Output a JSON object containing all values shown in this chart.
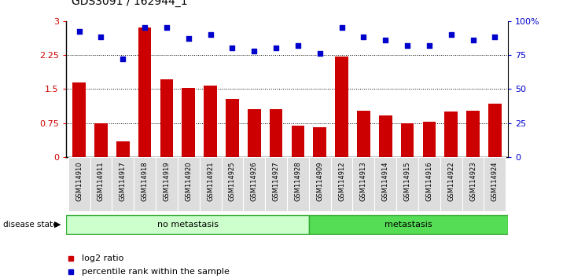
{
  "title": "GDS3091 / 162944_1",
  "samples": [
    "GSM114910",
    "GSM114911",
    "GSM114917",
    "GSM114918",
    "GSM114919",
    "GSM114920",
    "GSM114921",
    "GSM114925",
    "GSM114926",
    "GSM114927",
    "GSM114928",
    "GSM114909",
    "GSM114912",
    "GSM114913",
    "GSM114914",
    "GSM114915",
    "GSM114916",
    "GSM114922",
    "GSM114923",
    "GSM114924"
  ],
  "log2_ratio": [
    1.65,
    0.75,
    0.35,
    2.85,
    1.72,
    1.52,
    1.57,
    1.28,
    1.05,
    1.05,
    0.7,
    0.65,
    2.22,
    1.02,
    0.92,
    0.75,
    0.78,
    1.0,
    1.02,
    1.18
  ],
  "percentile": [
    92,
    88,
    72,
    95,
    95,
    87,
    90,
    80,
    78,
    80,
    82,
    76,
    95,
    88,
    86,
    82,
    82,
    90,
    86,
    88
  ],
  "no_metastasis_count": 11,
  "metastasis_count": 9,
  "ylim_left": [
    0,
    3
  ],
  "ylim_right": [
    0,
    100
  ],
  "yticks_left": [
    0,
    0.75,
    1.5,
    2.25,
    3
  ],
  "yticks_right": [
    0,
    25,
    50,
    75,
    100
  ],
  "ytick_labels_left": [
    "0",
    "0.75",
    "1.5",
    "2.25",
    "3"
  ],
  "ytick_labels_right": [
    "0",
    "25",
    "50",
    "75",
    "100%"
  ],
  "hlines": [
    0.75,
    1.5,
    2.25
  ],
  "bar_color": "#cc0000",
  "dot_color": "#0000cc",
  "no_metastasis_color": "#ccffcc",
  "metastasis_color": "#55dd55",
  "tick_bg_color": "#dddddd",
  "legend_items": [
    "log2 ratio",
    "percentile rank within the sample"
  ],
  "legend_colors": [
    "#cc0000",
    "#0000cc"
  ]
}
